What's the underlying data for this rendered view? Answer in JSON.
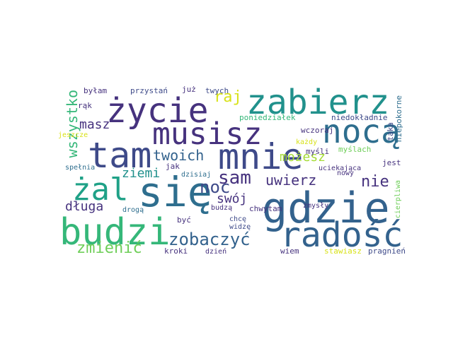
{
  "palette": {
    "dark_purple": "#46327e",
    "indigo": "#3e4a89",
    "blue": "#33628d",
    "steel": "#2e6e8e",
    "teal": "#21918c",
    "teal_green": "#1fa187",
    "green": "#35b779",
    "light_green": "#6ece58",
    "lime": "#a5db36",
    "yellow": "#d8e219",
    "deep": "#440154"
  },
  "words": [
    {
      "key": "zabierz",
      "text": "zabierz"
    },
    {
      "key": "zycie",
      "text": "życie"
    },
    {
      "key": "musisz",
      "text": "musisz"
    },
    {
      "key": "noca",
      "text": "nocą"
    },
    {
      "key": "tam",
      "text": "tam"
    },
    {
      "key": "mnie",
      "text": "mnie"
    },
    {
      "key": "sie",
      "text": "się"
    },
    {
      "key": "zal",
      "text": "żal"
    },
    {
      "key": "gdzie",
      "text": "gdzie"
    },
    {
      "key": "budzi",
      "text": "budzi"
    },
    {
      "key": "radosc",
      "text": "radość"
    },
    {
      "key": "zobaczyc",
      "text": "zobaczyć"
    },
    {
      "key": "zmienic",
      "text": "zmienić"
    },
    {
      "key": "dluga",
      "text": "długa"
    },
    {
      "key": "ziemi",
      "text": "ziemi"
    },
    {
      "key": "twoich",
      "text": "twoich"
    },
    {
      "key": "masz",
      "text": "masz"
    },
    {
      "key": "wszystko",
      "text": "wszystko"
    },
    {
      "key": "raj",
      "text": "raj"
    },
    {
      "key": "noc",
      "text": "noc"
    },
    {
      "key": "sam",
      "text": "sam"
    },
    {
      "key": "mozesz",
      "text": "możesz"
    },
    {
      "key": "uwierz",
      "text": "uwierz"
    },
    {
      "key": "nie",
      "text": "nie"
    },
    {
      "key": "swoj",
      "text": "swój"
    },
    {
      "key": "bylam",
      "text": "byłam"
    },
    {
      "key": "przystan",
      "text": "przystań"
    },
    {
      "key": "juz",
      "text": "już"
    },
    {
      "key": "twych",
      "text": "twych"
    },
    {
      "key": "rak",
      "text": "rąk"
    },
    {
      "key": "poniedzialek",
      "text": "poniedziałek"
    },
    {
      "key": "niedokladnie",
      "text": "niedokładnie"
    },
    {
      "key": "niepokorne",
      "text": "niepokorne"
    },
    {
      "key": "jeszcze",
      "text": "jeszcze"
    },
    {
      "key": "wczoraj",
      "text": "wczoraj"
    },
    {
      "key": "kazdy",
      "text": "każdy"
    },
    {
      "key": "taka",
      "text": "taka"
    },
    {
      "key": "mysli",
      "text": "myśli"
    },
    {
      "key": "myslach",
      "text": "myślach"
    },
    {
      "key": "spelnia",
      "text": "spełnia"
    },
    {
      "key": "jak",
      "text": "jak"
    },
    {
      "key": "dzisiaj",
      "text": "dzisiaj"
    },
    {
      "key": "uciekajaca",
      "text": "uciekająca"
    },
    {
      "key": "jest",
      "text": "jest"
    },
    {
      "key": "nowy",
      "text": "nowy"
    },
    {
      "key": "budza",
      "text": "budzą"
    },
    {
      "key": "chwytam",
      "text": "chwytam"
    },
    {
      "key": "zmysly",
      "text": "zmysły"
    },
    {
      "key": "cierpliwa",
      "text": "cierpliwa"
    },
    {
      "key": "droga",
      "text": "drogą"
    },
    {
      "key": "byc",
      "text": "być"
    },
    {
      "key": "chce",
      "text": "chcę"
    },
    {
      "key": "widze",
      "text": "widzę"
    },
    {
      "key": "kroki",
      "text": "kroki"
    },
    {
      "key": "dzien",
      "text": "dzień"
    },
    {
      "key": "wiem",
      "text": "wiem"
    },
    {
      "key": "stawiasz",
      "text": "stawiasz"
    },
    {
      "key": "pragnien",
      "text": "pragnień"
    }
  ]
}
